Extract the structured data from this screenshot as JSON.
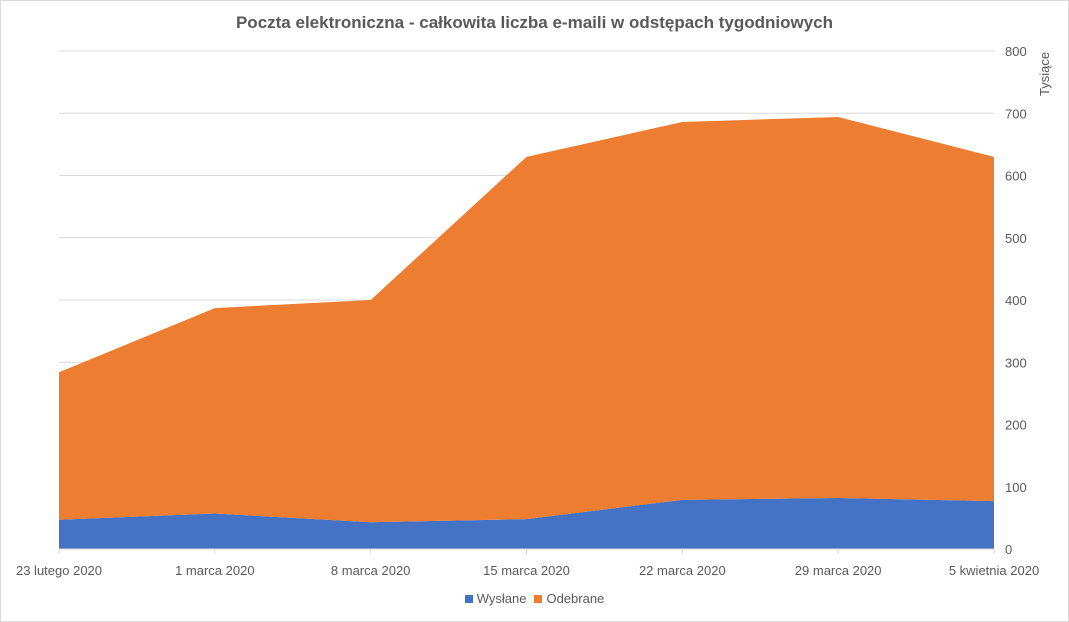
{
  "chart_data": {
    "type": "area",
    "stacked": true,
    "title": "Poczta elektroniczna - całkowita liczba e-maili w odstępach tygodniowych",
    "ylabel": "Tysiące",
    "xlabel": "",
    "ylim": [
      0,
      800
    ],
    "yticks": [
      0,
      100,
      200,
      300,
      400,
      500,
      600,
      700,
      800
    ],
    "y_axis_side": "right",
    "grid": true,
    "legend_position": "bottom",
    "categories": [
      "23 lutego 2020",
      "1 marca 2020",
      "8 marca 2020",
      "15 marca 2020",
      "22 marca 2020",
      "29 marca 2020",
      "5 kwietnia 2020"
    ],
    "series": [
      {
        "name": "Wysłane",
        "color": "#4472c4",
        "values": [
          47,
          57,
          43,
          48,
          79,
          82,
          77
        ]
      },
      {
        "name": "Odebrane",
        "color": "#ed7d31",
        "values": [
          237,
          330,
          357,
          582,
          607,
          612,
          553
        ]
      }
    ]
  }
}
